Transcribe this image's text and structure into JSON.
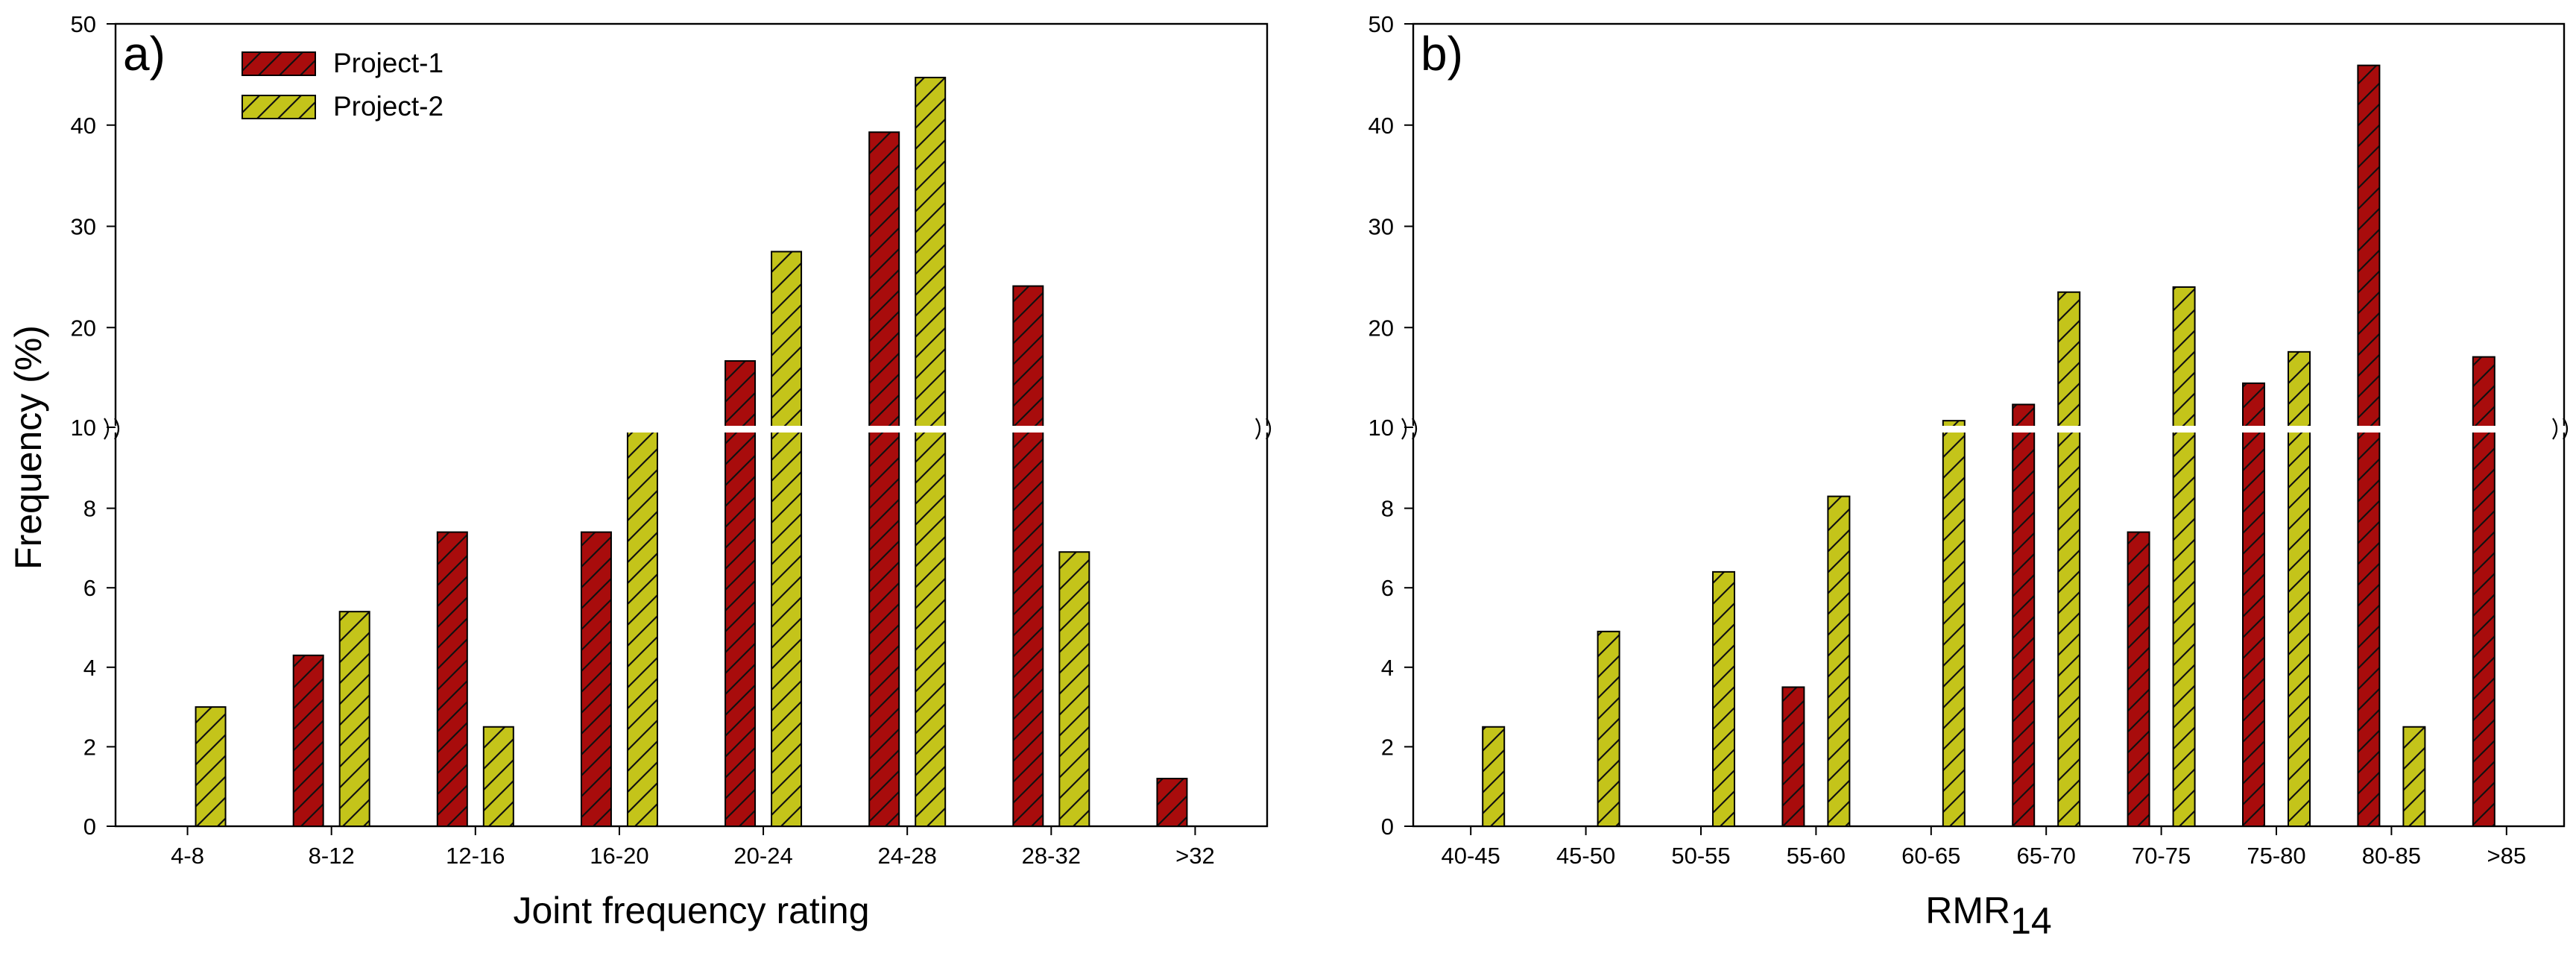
{
  "colors": {
    "project1": "#a80c0c",
    "project2": "#c4c41a",
    "hatch": "#111111",
    "axis": "#000000"
  },
  "chart_data": [
    {
      "type": "bar",
      "panel_label": "a)",
      "title": "",
      "xlabel": "Joint frequency rating",
      "ylabel": "Frequency (%)",
      "xlabel_sub": "",
      "categories": [
        "4-8",
        "8-12",
        "12-16",
        "16-20",
        "20-24",
        "24-28",
        "28-32",
        ">32"
      ],
      "series": [
        {
          "name": "Project-1",
          "values": [
            null,
            4.3,
            7.4,
            7.4,
            16.7,
            39.3,
            24.1,
            1.2
          ]
        },
        {
          "name": "Project-2",
          "values": [
            3.0,
            5.4,
            2.5,
            10.2,
            27.5,
            44.7,
            6.9,
            null
          ]
        }
      ],
      "y_axis": {
        "type": "broken",
        "break_at": 10,
        "lower_ylim": [
          0,
          10
        ],
        "lower_ticks": [
          "0",
          "2",
          "4",
          "6",
          "8"
        ],
        "upper_ylim": [
          10,
          50
        ],
        "upper_ticks": [
          "10",
          "20",
          "30",
          "40",
          "50"
        ]
      },
      "legend": {
        "position": "top-left",
        "entries": [
          "Project-1",
          "Project-2"
        ]
      },
      "grid": false
    },
    {
      "type": "bar",
      "panel_label": "b)",
      "title": "",
      "xlabel": "RMR",
      "xlabel_sub": "14",
      "ylabel": "",
      "categories": [
        "40-45",
        "45-50",
        "50-55",
        "55-60",
        "60-65",
        "65-70",
        "70-75",
        "75-80",
        "80-85",
        ">85"
      ],
      "series": [
        {
          "name": "Project-1",
          "values": [
            null,
            null,
            null,
            3.5,
            null,
            12.4,
            7.4,
            14.5,
            45.9,
            17.1
          ]
        },
        {
          "name": "Project-2",
          "values": [
            2.5,
            4.9,
            6.4,
            8.3,
            10.8,
            23.5,
            24.0,
            17.6,
            2.5,
            null
          ]
        }
      ],
      "y_axis": {
        "type": "broken",
        "break_at": 10,
        "lower_ylim": [
          0,
          10
        ],
        "lower_ticks": [
          "0",
          "2",
          "4",
          "6",
          "8"
        ],
        "upper_ylim": [
          10,
          50
        ],
        "upper_ticks": [
          "10",
          "20",
          "30",
          "40",
          "50"
        ]
      },
      "legend": null,
      "grid": false
    }
  ]
}
